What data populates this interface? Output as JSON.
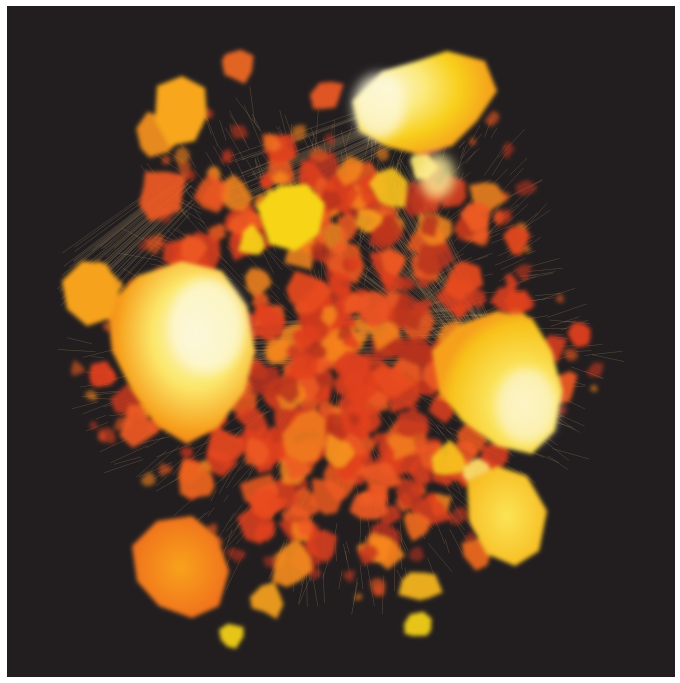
{
  "image": {
    "subject": "network-graph-visualization",
    "background_color": "#221e20",
    "border_color": "#ffffff",
    "palette": {
      "deep_red": "#b8321f",
      "red": "#e0401f",
      "red_orange": "#ee5a22",
      "orange": "#f6861f",
      "amber": "#f8a61d",
      "yellow": "#f7d419",
      "pale_yellow": "#fbef9a",
      "cream": "#fdf8da",
      "edge": "#c8a46a"
    },
    "clusters": [
      {
        "name": "cluster-left-large",
        "tone": "cream"
      },
      {
        "name": "cluster-right-large",
        "tone": "pale_yellow"
      },
      {
        "name": "cluster-top-right",
        "tone": "yellow"
      },
      {
        "name": "cluster-bottom-left",
        "tone": "orange"
      },
      {
        "name": "cluster-bottom-right",
        "tone": "yellow"
      },
      {
        "name": "cluster-left-mid",
        "tone": "amber"
      },
      {
        "name": "cluster-top-left",
        "tone": "amber"
      },
      {
        "name": "cluster-center-upper",
        "tone": "yellow"
      }
    ]
  }
}
